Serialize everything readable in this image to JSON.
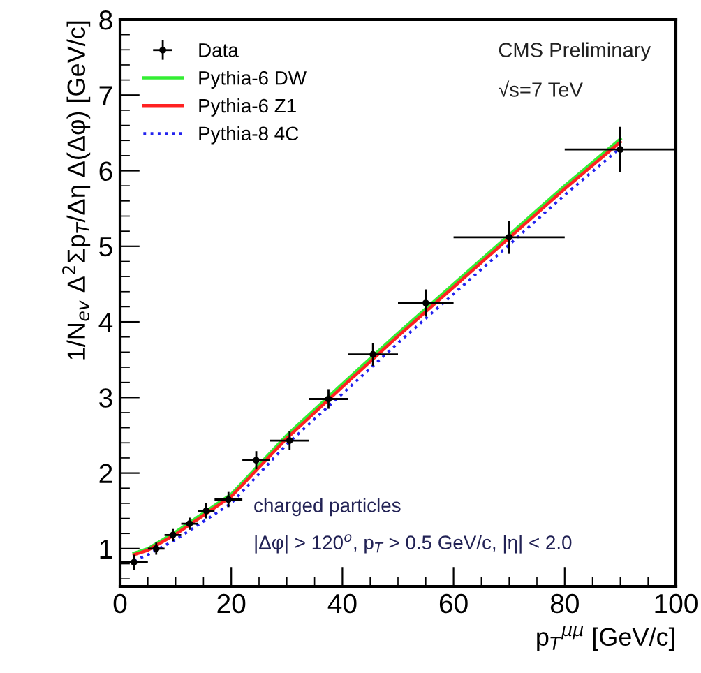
{
  "chart_data": {
    "type": "line",
    "xlabel": "p$_{T}$$^{μμ}$ [GeV/c]",
    "ylabel": "1/N$_{ev}$ Δ$^{2}$Σp$_{T}$/Δη Δ(Δφ) [GeV/c]",
    "xlim": [
      0,
      100
    ],
    "xticks": [
      0,
      20,
      40,
      60,
      80,
      100
    ],
    "ylim": [
      0.5,
      8
    ],
    "yticks": [
      1,
      2,
      3,
      4,
      5,
      6,
      7,
      8
    ],
    "grid": false,
    "legend": "top left",
    "annotations": [
      "CMS Preliminary",
      "√s=7 TeV",
      "charged particles",
      "|Δφ| > 120$^{o}$, p$_{T}$ > 0.5 GeV/c, |η| < 2.0"
    ],
    "series": [
      {
        "name": "Data",
        "type": "scatter",
        "color": "#000000",
        "marker": "circle",
        "x": [
          2.5,
          6.5,
          9.5,
          12.5,
          15.5,
          19.5,
          24.5,
          30.5,
          37.5,
          45.5,
          55,
          70,
          90
        ],
        "values": [
          0.82,
          1.0,
          1.18,
          1.33,
          1.5,
          1.65,
          2.17,
          2.43,
          2.98,
          3.57,
          4.25,
          5.12,
          6.28
        ],
        "xerrors": [
          [
            0,
            5
          ],
          [
            5,
            8
          ],
          [
            8,
            11
          ],
          [
            11,
            14
          ],
          [
            14,
            17
          ],
          [
            17,
            22
          ],
          [
            22,
            27
          ],
          [
            27,
            34
          ],
          [
            34,
            41
          ],
          [
            41,
            50
          ],
          [
            50,
            60
          ],
          [
            60,
            80
          ],
          [
            80,
            100
          ]
        ],
        "errors": [
          0.1,
          0.08,
          0.08,
          0.08,
          0.1,
          0.1,
          0.12,
          0.12,
          0.13,
          0.15,
          0.18,
          0.22,
          0.3
        ]
      },
      {
        "name": "Pythia-6 DW",
        "color": "#33ee33",
        "line_style": "solid",
        "x": [
          2.5,
          5,
          10,
          20,
          30,
          40,
          50,
          60,
          70,
          80,
          90
        ],
        "values": [
          0.94,
          1.0,
          1.22,
          1.72,
          2.5,
          3.18,
          3.85,
          4.5,
          5.15,
          5.8,
          6.42
        ]
      },
      {
        "name": "Pythia-6 Z1",
        "color": "#ff2222",
        "line_style": "solid",
        "x": [
          2.5,
          5,
          10,
          20,
          30,
          40,
          50,
          60,
          70,
          80,
          90
        ],
        "values": [
          0.92,
          0.98,
          1.19,
          1.69,
          2.46,
          3.14,
          3.81,
          4.46,
          5.11,
          5.76,
          6.38
        ]
      },
      {
        "name": "Pythia-8 4C",
        "color": "#2222ee",
        "line_style": "dotted",
        "x": [
          2.5,
          5,
          10,
          20,
          30,
          40,
          50,
          60,
          70,
          80,
          90
        ],
        "values": [
          0.84,
          0.92,
          1.12,
          1.6,
          2.38,
          3.05,
          3.72,
          4.37,
          5.02,
          5.68,
          6.3
        ]
      }
    ]
  }
}
